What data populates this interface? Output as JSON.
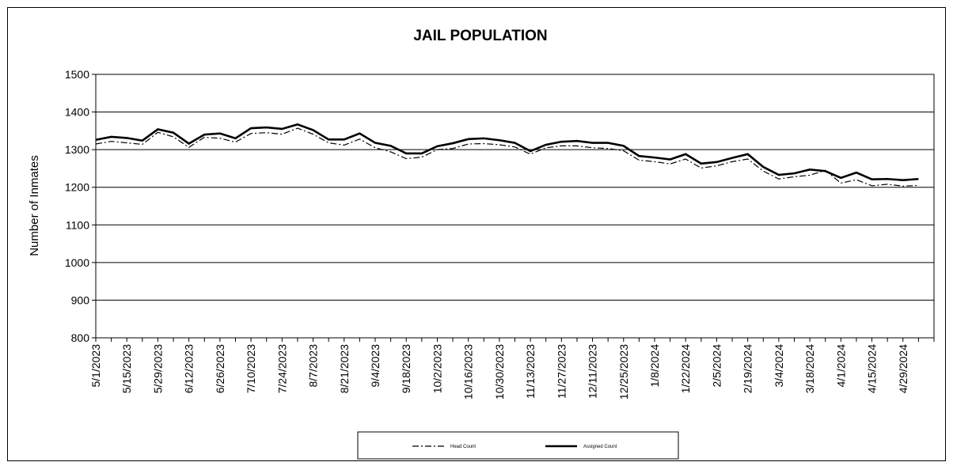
{
  "chart_data": {
    "type": "line",
    "title": "JAIL POPULATION",
    "xlabel": "",
    "ylabel": "Number of Inmates",
    "ylim": [
      800,
      1500
    ],
    "yticks": [
      800,
      900,
      1000,
      1100,
      1200,
      1300,
      1400,
      1500
    ],
    "grid": true,
    "legend_position": "bottom",
    "x": [
      "5/1/2023",
      "5/8/2023",
      "5/15/2023",
      "5/22/2023",
      "5/29/2023",
      "6/5/2023",
      "6/12/2023",
      "6/19/2023",
      "6/26/2023",
      "7/3/2023",
      "7/10/2023",
      "7/17/2023",
      "7/24/2023",
      "7/31/2023",
      "8/7/2023",
      "8/14/2023",
      "8/21/2023",
      "8/28/2023",
      "9/4/2023",
      "9/11/2023",
      "9/18/2023",
      "9/25/2023",
      "10/2/2023",
      "10/9/2023",
      "10/16/2023",
      "10/23/2023",
      "10/30/2023",
      "11/6/2023",
      "11/13/2023",
      "11/20/2023",
      "11/27/2023",
      "12/4/2023",
      "12/11/2023",
      "12/18/2023",
      "12/25/2023",
      "1/1/2024",
      "1/8/2024",
      "1/15/2024",
      "1/22/2024",
      "1/29/2024",
      "2/5/2024",
      "2/12/2024",
      "2/19/2024",
      "2/26/2024",
      "3/4/2024",
      "3/11/2024",
      "3/18/2024",
      "3/25/2024",
      "4/1/2024",
      "4/8/2024",
      "4/15/2024",
      "4/22/2024",
      "4/29/2024",
      "5/6/2024"
    ],
    "x_tick_labels": [
      "5/1/2023",
      "5/15/2023",
      "5/29/2023",
      "6/12/2023",
      "6/26/2023",
      "7/10/2023",
      "7/24/2023",
      "8/7/2023",
      "8/21/2023",
      "9/4/2023",
      "9/18/2023",
      "10/2/2023",
      "10/16/2023",
      "10/30/2023",
      "11/13/2023",
      "11/27/2023",
      "12/11/2023",
      "12/25/2023",
      "1/8/2024",
      "1/22/2024",
      "2/5/2024",
      "2/19/2024",
      "3/4/2024",
      "3/18/2024",
      "4/1/2024",
      "4/15/2024",
      "4/29/2024"
    ],
    "series": [
      {
        "name": "Head Count",
        "style": "dash-dot",
        "color": "#000000",
        "values": [
          1315,
          1322,
          1318,
          1314,
          1346,
          1334,
          1306,
          1333,
          1330,
          1320,
          1343,
          1345,
          1341,
          1357,
          1341,
          1318,
          1312,
          1328,
          1305,
          1294,
          1276,
          1280,
          1300,
          1303,
          1315,
          1316,
          1313,
          1307,
          1288,
          1305,
          1310,
          1310,
          1305,
          1303,
          1297,
          1272,
          1268,
          1262,
          1275,
          1251,
          1257,
          1268,
          1275,
          1243,
          1222,
          1228,
          1232,
          1245,
          1211,
          1220,
          1204,
          1208,
          1203,
          1205
        ]
      },
      {
        "name": "Assigned Count",
        "style": "solid",
        "color": "#000000",
        "values": [
          1326,
          1334,
          1331,
          1324,
          1354,
          1345,
          1316,
          1340,
          1343,
          1330,
          1357,
          1359,
          1355,
          1367,
          1352,
          1327,
          1327,
          1343,
          1318,
          1310,
          1290,
          1290,
          1309,
          1317,
          1328,
          1330,
          1325,
          1318,
          1296,
          1313,
          1321,
          1323,
          1318,
          1318,
          1310,
          1283,
          1279,
          1274,
          1288,
          1263,
          1267,
          1278,
          1288,
          1254,
          1233,
          1237,
          1247,
          1243,
          1225,
          1239,
          1221,
          1222,
          1219,
          1222
        ]
      }
    ]
  }
}
